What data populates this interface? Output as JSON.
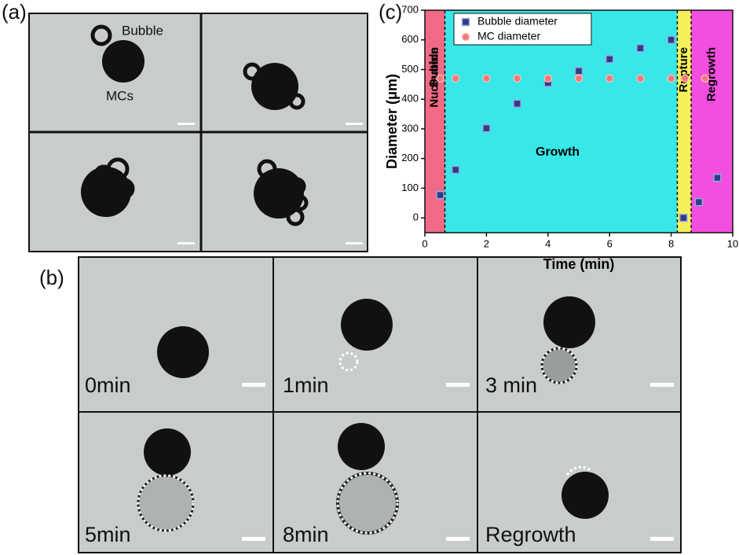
{
  "panel_labels": [
    "(a)",
    "(b)",
    "(c)"
  ],
  "panel_a": {
    "labels": [
      "Bubble",
      "MCs"
    ]
  },
  "panel_b": {
    "captions": [
      "0min",
      "1min",
      "3 min",
      "5min",
      "8min",
      "Regrowth"
    ]
  },
  "chart_data": {
    "type": "scatter",
    "x_label": "Time (min)",
    "y_label": "Diameter (μm)",
    "xlim": [
      0,
      10
    ],
    "ylim": [
      -50,
      700
    ],
    "xticks": [
      0,
      2,
      4,
      6,
      8,
      10
    ],
    "yticks": [
      0,
      100,
      200,
      300,
      400,
      500,
      600,
      700
    ],
    "legend": "upper left",
    "regions": [
      {
        "start": 0,
        "end": 0.65,
        "color": "#f06a85",
        "label": [
          "Bubble",
          "Nucleation"
        ]
      },
      {
        "start": 0.65,
        "end": 8.2,
        "color": "#38e8e8",
        "label": [
          "Growth"
        ]
      },
      {
        "start": 8.2,
        "end": 8.65,
        "color": "#f5f05a",
        "label": [
          "Rupture"
        ]
      },
      {
        "start": 8.65,
        "end": 10,
        "color": "#f24ee0",
        "label": [
          "Regrowth"
        ]
      }
    ],
    "series": [
      {
        "name": "Bubble diameter",
        "color": "#2e3d84",
        "marker": "square",
        "x": [
          0.5,
          1,
          2,
          3,
          4,
          5,
          6,
          7,
          8,
          8.4,
          8.9,
          9.5
        ],
        "values": [
          77,
          162,
          302,
          385,
          455,
          495,
          535,
          572,
          600,
          0,
          53,
          135
        ]
      },
      {
        "name": "MC diameter",
        "color": "#f07878",
        "marker": "circle",
        "x": [
          0.5,
          1,
          2,
          3,
          4,
          5,
          6,
          7,
          8,
          8.45,
          9.1
        ],
        "values": [
          470,
          470,
          470,
          470,
          470,
          470,
          470,
          470,
          470,
          470,
          470
        ]
      }
    ]
  }
}
